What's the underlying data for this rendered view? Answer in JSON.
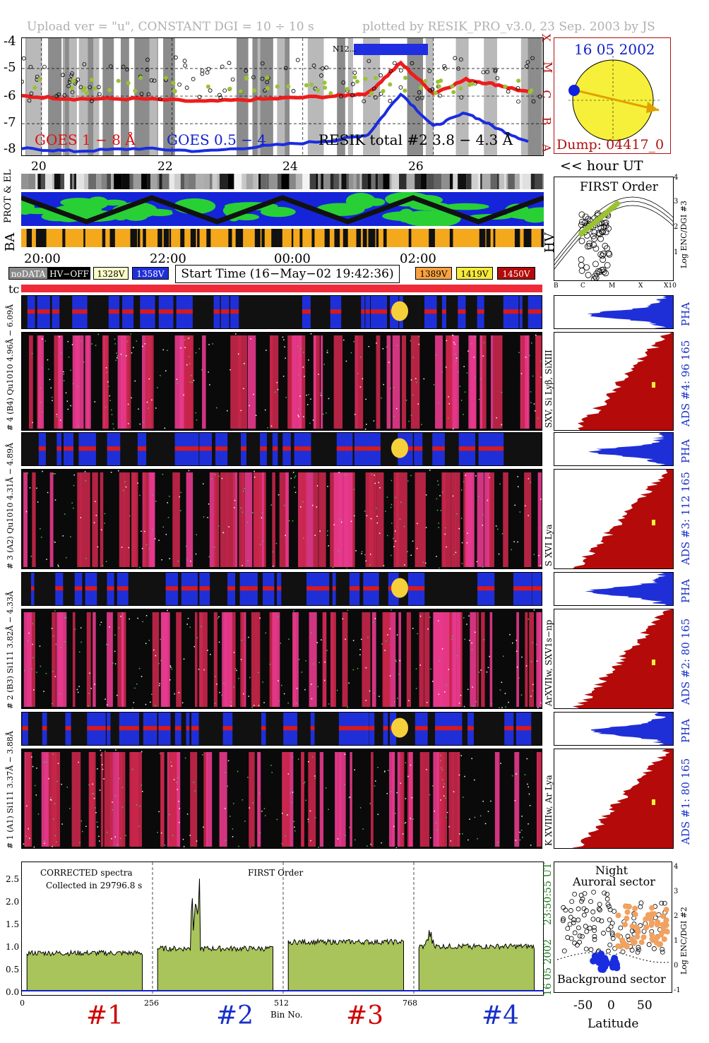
{
  "header": {
    "left": "Upload ver = \"u\", CONSTANT  DGI =  10 ÷  10 s",
    "right": "plotted by RESIK_PRO_v3.0, 23 Sep. 2003 by JS"
  },
  "goes_panel": {
    "y_ticks": [
      "-4",
      "-5",
      "-6",
      "-7",
      "-8"
    ],
    "class_labels": [
      "X",
      "M",
      "C",
      "B",
      "A"
    ],
    "label_goes_long": "GOES 1 − 8 Å",
    "label_goes_short": "GOES 0.5 − 4",
    "label_resik": "RESIK total #2  3.8 − 4.3 Å",
    "flare_tag": "N12...",
    "hour_ticks": [
      "20",
      "22",
      "24",
      "26"
    ],
    "hour_axis_label": "<< hour UT"
  },
  "sun_panel": {
    "date": "16 05 2002",
    "dump": "Dump: 04417_0"
  },
  "status_rows": {
    "prot_el": "PROT & EL",
    "ba": "BA",
    "hv": "HV",
    "time_ticks": [
      "20:00",
      "22:00",
      "00:00",
      "02:00"
    ]
  },
  "legend": {
    "nodata": "noDATA",
    "hvoff": "HV−OFF",
    "v1328": "1328V",
    "v1358": "1358V",
    "start_time": "Start Time (16−May−02 19:42:36)",
    "v1389": "1389V",
    "v1419": "1419V",
    "v1450": "1450V",
    "colors": {
      "v1328": "#fbfbc8",
      "v1358": "#1f2fd8",
      "v1389": "#f7a23f",
      "v1419": "#f6ea3b",
      "v1450": "#b40a0a"
    }
  },
  "tc_label": "tc",
  "first_order_panel": {
    "title": "FIRST Order",
    "ylabel": "Log ENC/DGI #3",
    "x_ticks": [
      "B",
      "C",
      "M",
      "X",
      "X10"
    ],
    "y_ticks": [
      "1",
      "2",
      "3",
      "4"
    ]
  },
  "channels": [
    {
      "pha_label": "# 4 (B4) Qu1010 4.96Å − 6.09Å",
      "line_label": "SXV, Si Lyβ, SiXIII",
      "ads_label": "ADS #4:   96 165",
      "pha": "PHA"
    },
    {
      "pha_label": "# 3 (A2) Qu1010 4.31Å − 4.89Å",
      "line_label": "S XVI Lya",
      "ads_label": "ADS #3:   112 165",
      "pha": "PHA"
    },
    {
      "pha_label": "# 2 (B3) Si111 3.82Å − 4.33Å",
      "line_label": "ArXVIIw, SXV1s−np",
      "ads_label": "ADS #2:   80 165",
      "pha": "PHA"
    },
    {
      "pha_label": "# 1 (A1) Si111 3.37Å − 3.88Å",
      "line_label": "K XVIIIw, Ar Lya",
      "ads_label": "ADS #1:   80 165",
      "pha": "PHA"
    }
  ],
  "spectrum_panel": {
    "title_left": "CORRECTED spectra",
    "collected": "Collected in 29796.8 s",
    "title_mid": "FIRST Order",
    "ut_time": "23:50:55 UT",
    "ut_date": "16 05 2002",
    "x_ticks": [
      "0",
      "256",
      "512",
      "768"
    ],
    "xlabel": "Bin No.",
    "y_ticks": [
      "0.0",
      "0.5",
      "1.0",
      "1.5",
      "2.0",
      "2.5"
    ],
    "channel_labels": [
      "#1",
      "#2",
      "#3",
      "#4"
    ],
    "channel_colors": [
      "#d00000",
      "#1830c8",
      "#d00000",
      "#1830c8"
    ]
  },
  "orbit_panel": {
    "title1": "Night",
    "title2": "Auroral sector",
    "bottom": "Background sector",
    "xlabel": "Latitude",
    "x_ticks": [
      "-50",
      "0",
      "50"
    ],
    "ylabel": "Log ENC/DGI #2",
    "y_ticks": [
      "-1",
      "0",
      "1",
      "2",
      "3",
      "4"
    ]
  },
  "chart_data": {
    "type": "line",
    "x_unit": "hour UT",
    "series": [
      {
        "name": "GOES 1 − 8 Å",
        "x": [
          19.7,
          20.5,
          21.5,
          22.5,
          23.5,
          24.5,
          25.0,
          25.5,
          26.0,
          26.5,
          27.0,
          27.5
        ],
        "values": [
          -6.0,
          -6.1,
          -6.1,
          -6.2,
          -6.1,
          -6.0,
          -5.9,
          -4.8,
          -5.9,
          -5.4,
          -5.6,
          -5.9
        ]
      },
      {
        "name": "GOES 0.5 − 4",
        "x": [
          19.7,
          20.5,
          21.5,
          22.5,
          23.5,
          24.5,
          25.0,
          25.5,
          26.0,
          26.5,
          27.0,
          27.5
        ],
        "values": [
          -7.9,
          -8.0,
          -7.9,
          -8.0,
          -7.8,
          -7.6,
          -7.4,
          -5.9,
          -7.1,
          -6.6,
          -7.2,
          -7.7
        ]
      }
    ],
    "ylim": [
      -8.2,
      -3.9
    ],
    "spectra": {
      "type": "area",
      "xlim": [
        0,
        1024
      ],
      "ylim": [
        0,
        2.9
      ],
      "channel_means": [
        0.85,
        0.95,
        1.1,
        1.0
      ]
    }
  }
}
